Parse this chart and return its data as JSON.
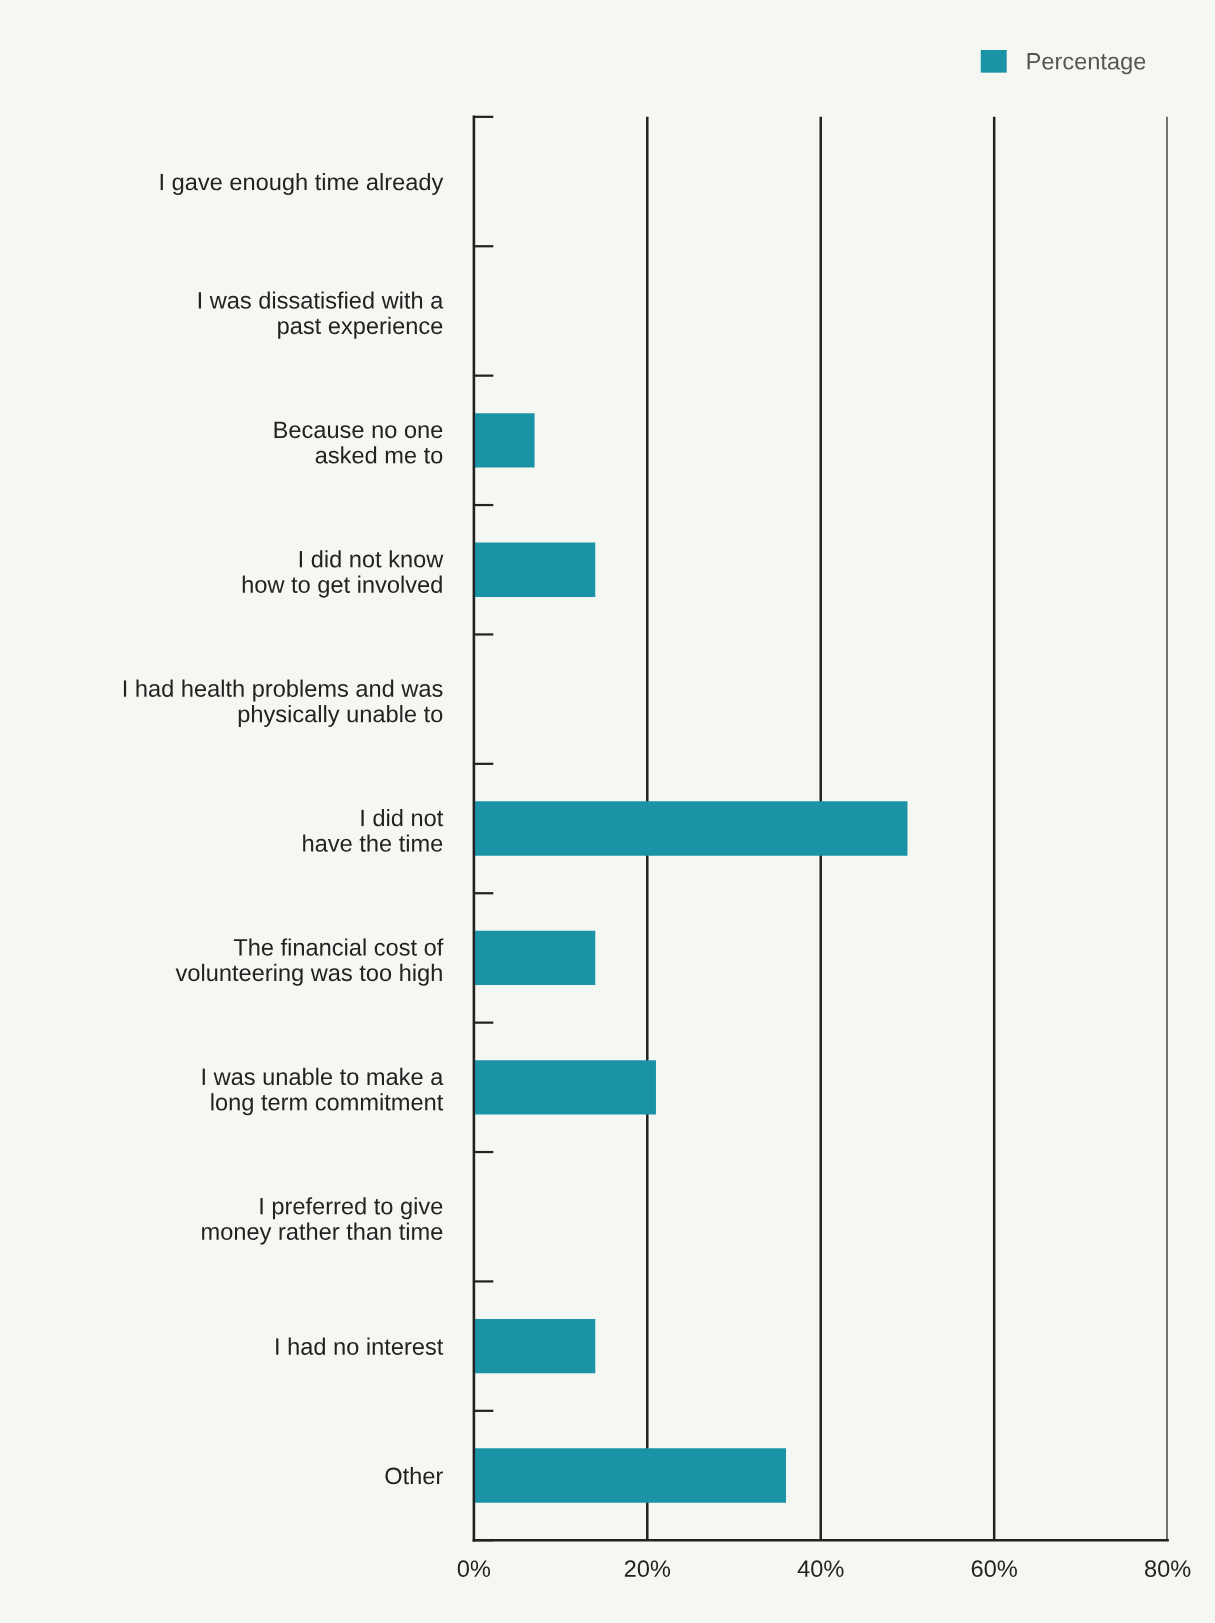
{
  "chart_data": {
    "type": "bar",
    "orientation": "horizontal",
    "categories": [
      "I gave enough time already",
      "I was dissatisfied with a\npast experience",
      "Because no one\nasked me to",
      "I did not know\nhow to get involved",
      "I had health problems and was\nphysically unable to",
      "I did not\nhave the time",
      "The financial cost of\nvolunteering was too high",
      "I was unable to make a\nlong term commitment",
      "I preferred to give\nmoney rather than time",
      "I had no interest",
      "Other"
    ],
    "series": [
      {
        "name": "Percentage",
        "color": "#1a93a6",
        "values": [
          0,
          0,
          7,
          14,
          0,
          50,
          14,
          21,
          0,
          14,
          36
        ]
      }
    ],
    "xlim": [
      0,
      80
    ],
    "xticks": [
      {
        "value": 0,
        "label": "0%"
      },
      {
        "value": 20,
        "label": "20%"
      },
      {
        "value": 40,
        "label": "40%"
      },
      {
        "value": 60,
        "label": "60%"
      },
      {
        "value": 80,
        "label": "80%"
      }
    ],
    "grid": "x",
    "legend": "top right"
  }
}
